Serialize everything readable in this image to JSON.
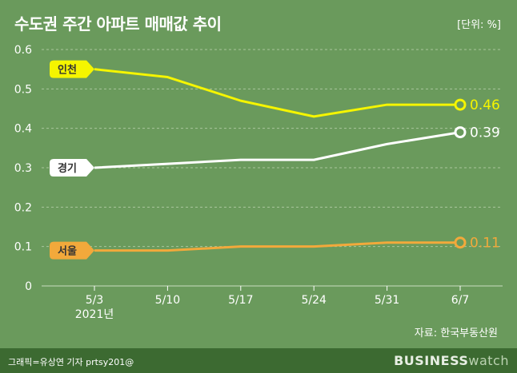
{
  "header": {
    "title": "수도권 주간 아파트 매매값 추이",
    "unit": "[단위: %]"
  },
  "source": "자료: 한국부동산원",
  "footer": {
    "credit": "그래픽=유상연 기자 prtsy201@",
    "brand_bold": "BUSINESS",
    "brand_light": "watch"
  },
  "chart_data": {
    "type": "line",
    "title": "수도권 주간 아파트 매매값 추이",
    "unit": "[단위: %]",
    "categories": [
      "5/3",
      "5/10",
      "5/17",
      "5/24",
      "5/31",
      "6/7"
    ],
    "x_sublabel": {
      "index": 0,
      "text": "2021년"
    },
    "yticks": [
      "0",
      "0.1",
      "0.2",
      "0.3",
      "0.4",
      "0.5",
      "0.6"
    ],
    "ylim": [
      0,
      0.6
    ],
    "grid": true,
    "series": [
      {
        "name": "인천",
        "values": [
          0.55,
          0.53,
          0.47,
          0.43,
          0.46,
          0.46
        ],
        "end_label": "0.46",
        "color": "#f5f500",
        "label_text_color": "#333333"
      },
      {
        "name": "경기",
        "values": [
          0.3,
          0.31,
          0.32,
          0.32,
          0.36,
          0.39
        ],
        "end_label": "0.39",
        "color": "#ffffff",
        "label_text_color": "#333333"
      },
      {
        "name": "서울",
        "values": [
          0.09,
          0.09,
          0.1,
          0.1,
          0.11,
          0.11
        ],
        "end_label": "0.11",
        "color": "#f2a93b",
        "label_text_color": "#333333"
      }
    ]
  }
}
